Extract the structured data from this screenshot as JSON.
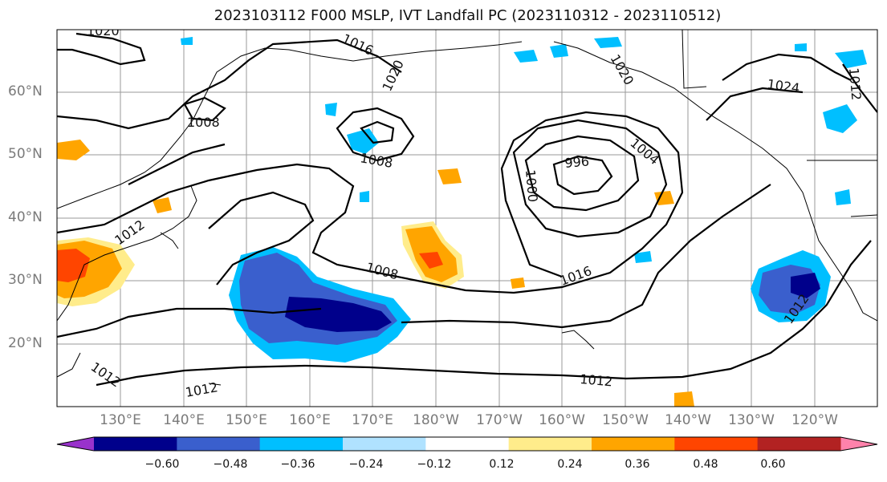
{
  "title": "2023103112 F000 MSLP, IVT Landfall PC (2023110312 - 2023110512)",
  "lat_labels": [
    "60°N",
    "50°N",
    "40°N",
    "30°N",
    "20°N"
  ],
  "lon_labels": [
    "130°E",
    "140°E",
    "150°E",
    "160°E",
    "170°E",
    "180°W",
    "170°W",
    "160°W",
    "150°W",
    "140°W",
    "130°W",
    "120°W"
  ],
  "colorbar": {
    "colors": [
      "#9932cc",
      "#00008b",
      "#3a5fcd",
      "#00bfff",
      "#b0e2ff",
      "#ffffff",
      "#ffec8b",
      "#ffa500",
      "#ff4500",
      "#b22222",
      "#ff82ab"
    ],
    "tick_labels": [
      "−0.60",
      "−0.48",
      "−0.36",
      "−0.24",
      "−0.12",
      "0.12",
      "0.24",
      "0.36",
      "0.48",
      "0.60"
    ]
  },
  "isobar_labels": [
    "1020",
    "1016",
    "1012",
    "1008",
    "1008",
    "996",
    "1004",
    "1000",
    "1024",
    "1020",
    "1020",
    "1012",
    "1008",
    "1016",
    "1012",
    "1012",
    "1012",
    "1012"
  ]
}
